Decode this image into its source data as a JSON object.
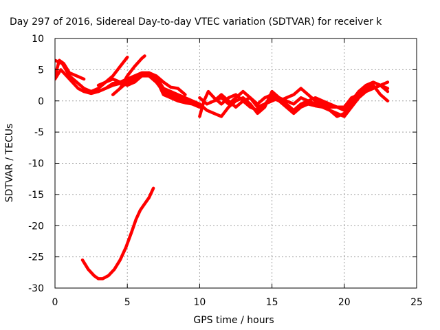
{
  "chart_data": {
    "type": "line",
    "title": "Day 297 of 2016, Sidereal Day-to-day VTEC variation (SDTVAR) for receiver k",
    "xlabel": "GPS time / hours",
    "ylabel": "SDTVAR / TECUs",
    "xlim": [
      0,
      25
    ],
    "ylim": [
      -30,
      10
    ],
    "xticks": [
      0,
      5,
      10,
      15,
      20,
      25
    ],
    "yticks": [
      -30,
      -25,
      -20,
      -15,
      -10,
      -5,
      0,
      5,
      10
    ],
    "grid": true,
    "series_color": "#ff0000",
    "series": [
      {
        "x": [
          0.0,
          0.3,
          0.6,
          1.0,
          1.5,
          2.0
        ],
        "y": [
          4.0,
          6.5,
          6.0,
          4.5,
          4.0,
          3.5
        ]
      },
      {
        "x": [
          0.0,
          0.4,
          0.8,
          1.2,
          1.6,
          2.0,
          2.5,
          3.0,
          3.5,
          4.0,
          4.5,
          5.0,
          5.5,
          6.0,
          6.5,
          7.0,
          7.5,
          8.0,
          8.5,
          9.0,
          9.5,
          10.0
        ],
        "y": [
          3.5,
          5.0,
          4.0,
          3.0,
          2.0,
          1.5,
          1.2,
          1.5,
          2.0,
          2.5,
          2.8,
          3.0,
          3.5,
          4.0,
          4.0,
          3.0,
          1.5,
          1.0,
          0.5,
          0.0,
          -0.5,
          -1.0
        ]
      },
      {
        "x": [
          0.0,
          0.5,
          1.0,
          1.5,
          2.0,
          2.5,
          3.0,
          3.5,
          4.0,
          4.5,
          5.0,
          5.5,
          6.0,
          6.5,
          7.0,
          7.5,
          8.0,
          8.5,
          9.0,
          9.5,
          10.0
        ],
        "y": [
          6.5,
          6.0,
          4.0,
          3.0,
          2.0,
          1.5,
          1.5,
          2.0,
          2.8,
          3.0,
          3.5,
          4.0,
          4.5,
          4.5,
          3.8,
          2.0,
          1.5,
          1.0,
          0.5,
          0.0,
          -0.5
        ]
      },
      {
        "x": [
          3.0,
          3.5,
          4.0,
          4.5,
          5.0,
          5.5,
          6.0,
          6.5,
          7.0,
          7.5,
          8.0,
          8.5,
          9.0,
          9.5,
          10.0
        ],
        "y": [
          2.5,
          3.0,
          3.5,
          3.0,
          2.5,
          3.0,
          4.0,
          4.2,
          3.5,
          1.0,
          0.5,
          0.0,
          -0.3,
          -0.5,
          -1.0
        ]
      },
      {
        "x": [
          2.5,
          3.0,
          3.5,
          4.0,
          4.5,
          5.0
        ],
        "y": [
          1.5,
          2.0,
          3.0,
          4.0,
          5.5,
          7.0
        ]
      },
      {
        "x": [
          4.0,
          4.5,
          5.0,
          5.5,
          6.0,
          6.2
        ],
        "y": [
          1.0,
          2.0,
          4.0,
          5.5,
          6.8,
          7.2
        ]
      },
      {
        "x": [
          4.5,
          5.0,
          5.5,
          6.0,
          6.5,
          7.0,
          7.5,
          8.0,
          8.5,
          9.0
        ],
        "y": [
          2.0,
          3.0,
          3.8,
          4.2,
          4.5,
          4.0,
          3.0,
          2.2,
          2.0,
          1.0
        ]
      },
      {
        "x": [
          10.0,
          10.3,
          10.6,
          11.0,
          11.5,
          12.0,
          12.5,
          13.0,
          13.5,
          14.0,
          14.5,
          15.0,
          15.5,
          16.0,
          16.5,
          17.0,
          17.5,
          18.0,
          18.5,
          19.0,
          19.5,
          20.0,
          20.5,
          21.0,
          21.5,
          22.0,
          22.5,
          23.0
        ],
        "y": [
          -2.5,
          0.0,
          1.5,
          0.5,
          -0.5,
          0.5,
          1.0,
          0.0,
          -1.0,
          -1.5,
          -0.5,
          0.5,
          0.0,
          -1.0,
          -2.0,
          -1.0,
          -0.5,
          -0.8,
          -1.0,
          -1.5,
          -2.0,
          -2.5,
          -1.0,
          0.5,
          1.5,
          2.0,
          2.5,
          1.5
        ]
      },
      {
        "x": [
          10.0,
          10.5,
          11.0,
          11.5,
          12.0,
          12.5,
          13.0,
          13.5,
          14.0,
          14.5,
          15.0,
          15.5,
          16.0,
          16.5,
          17.0,
          17.5,
          18.0,
          18.5,
          19.0,
          19.5,
          20.0,
          20.5,
          21.0,
          21.5,
          22.0,
          22.5,
          23.0
        ],
        "y": [
          -0.5,
          -1.5,
          -2.0,
          -2.5,
          -1.0,
          0.0,
          0.5,
          -0.5,
          -2.0,
          -1.0,
          1.5,
          0.5,
          -0.5,
          -1.5,
          -0.5,
          0.0,
          -0.5,
          -1.0,
          -1.5,
          -2.5,
          -2.0,
          -0.5,
          1.0,
          2.0,
          2.5,
          1.0,
          0.0
        ]
      },
      {
        "x": [
          10.0,
          10.5,
          11.0,
          11.5,
          12.0,
          12.5,
          13.0,
          13.5,
          14.0,
          14.5,
          15.0,
          15.5,
          16.0,
          16.5,
          17.0,
          17.5,
          18.0,
          18.5,
          19.0,
          19.5,
          20.0,
          20.5,
          21.0,
          21.5,
          22.0,
          22.5,
          23.0
        ],
        "y": [
          0.5,
          -0.5,
          0.0,
          0.5,
          -0.5,
          0.5,
          1.5,
          0.5,
          -0.5,
          0.5,
          1.0,
          0.0,
          0.5,
          1.0,
          2.0,
          1.0,
          0.0,
          -0.5,
          -1.0,
          -1.0,
          -1.5,
          0.0,
          1.5,
          2.5,
          3.0,
          2.5,
          3.0
        ]
      },
      {
        "x": [
          11.0,
          11.5,
          12.0,
          12.5,
          13.0,
          13.5,
          14.0,
          14.5,
          15.0,
          15.5,
          16.0,
          16.5,
          17.0,
          17.5,
          18.0,
          18.5,
          19.0,
          19.5,
          20.0,
          20.5,
          21.0,
          21.5,
          22.0,
          22.5,
          23.0
        ],
        "y": [
          0.0,
          1.0,
          0.0,
          -1.0,
          0.0,
          0.5,
          -1.0,
          -0.5,
          0.0,
          0.5,
          0.0,
          -0.5,
          0.5,
          0.0,
          0.5,
          0.0,
          -0.5,
          -1.0,
          -1.0,
          0.5,
          1.0,
          1.5,
          2.0,
          2.5,
          2.0
        ]
      },
      {
        "x": [
          1.9,
          2.3,
          2.7,
          3.0,
          3.3,
          3.7,
          4.1,
          4.5,
          4.9,
          5.3,
          5.6,
          5.9,
          6.2,
          6.5,
          6.8
        ],
        "y": [
          -25.5,
          -27.0,
          -28.0,
          -28.5,
          -28.5,
          -28.0,
          -27.0,
          -25.5,
          -23.5,
          -21.0,
          -19.0,
          -17.5,
          -16.5,
          -15.5,
          -14.0
        ]
      }
    ]
  }
}
